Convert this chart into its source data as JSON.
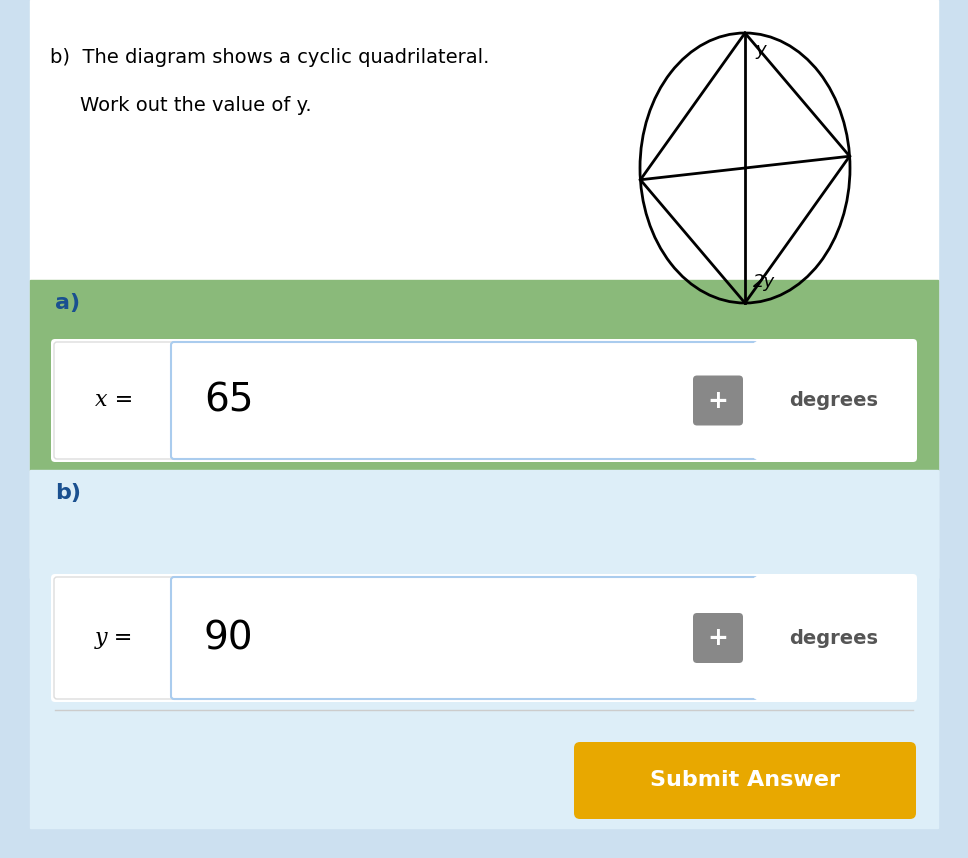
{
  "light_blue_bg": "#cce0f0",
  "white": "#ffffff",
  "green_bg": "#8aba7a",
  "answer_blue_bg": "#ddeef8",
  "dark_blue_text": "#1a5090",
  "gray_text": "#555555",
  "black": "#000000",
  "submit_bg": "#e8a800",
  "submit_text": "#ffffff",
  "question_b_text": "b)  The diagram shows a cyclic quadrilateral.",
  "question_b_subtext": "Work out the value of y.",
  "label_a": "a)",
  "label_b": "b)",
  "answer_a_var": "x =",
  "answer_a_val": "65",
  "answer_b_var": "y =",
  "answer_b_val": "90",
  "degrees_label": "degrees",
  "submit_label": "Submit Answer",
  "plus_color": "#888888",
  "plus_text": "+",
  "val_border": "#aaccee",
  "degrees_border": "#b8d4c8"
}
